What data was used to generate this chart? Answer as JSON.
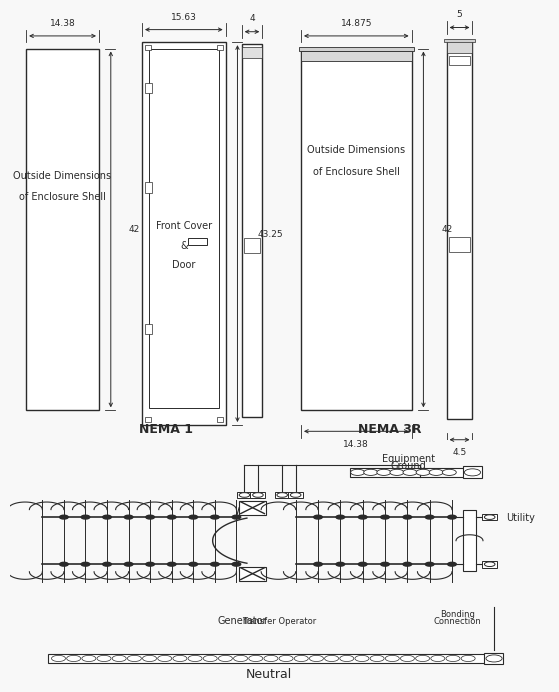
{
  "lc": "#2a2a2a",
  "bg": "#ffffff",
  "panel_bg": "#f8f8f8",
  "nema1_label": "NEMA 1",
  "nema3r_label": "NEMA 3R",
  "dim_14_38": "14.38",
  "dim_15_63": "15.63",
  "dim_4": "4",
  "dim_43_25": "43.25",
  "dim_42": "42",
  "dim_14_875": "14.875",
  "dim_14_38b": "14.38",
  "dim_5": "5",
  "dim_4_5": "4.5",
  "dim_42b": "42",
  "text_outside_dim": "Outside Dimensions",
  "text_encl_shell": "of Enclosure Shell",
  "text_front_cover": "Front Cover",
  "text_amp": "&",
  "text_door": "Door",
  "text_equip_ground": "Equipment\nGround",
  "text_utility": "Utility",
  "text_neutral": "Neutral",
  "text_generator": "Generator",
  "text_transfer_op": "Transfer Operator",
  "text_bonding": "Bonding\nConnection",
  "fs_dim": 6.5,
  "fs_label": 7.0,
  "fs_nema": 9.0,
  "fs_body": 7.0
}
